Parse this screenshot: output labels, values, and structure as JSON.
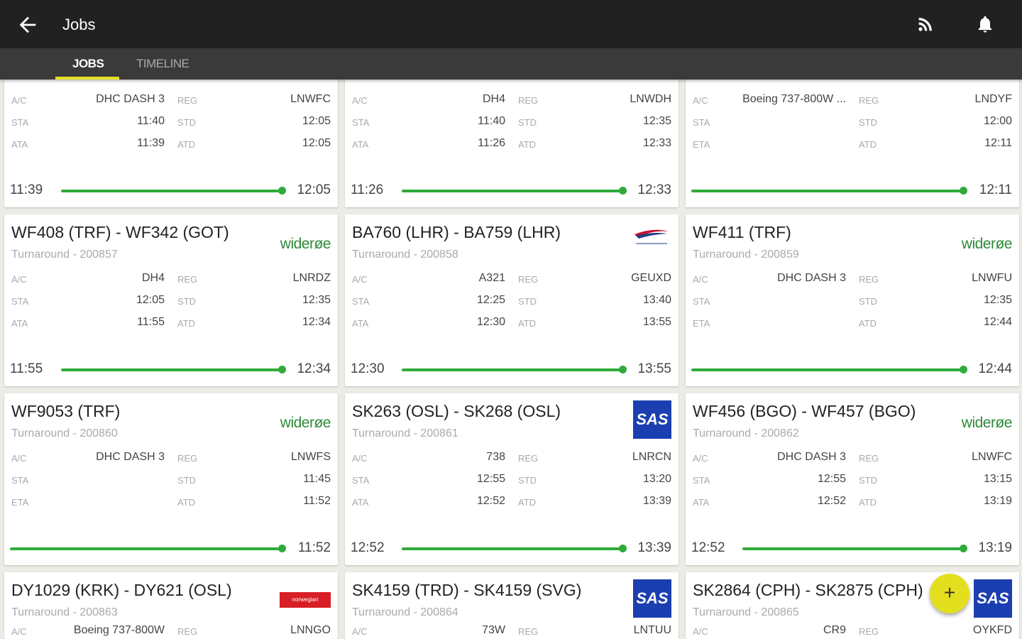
{
  "appbar": {
    "title": "Jobs",
    "back_icon": "arrow-left-icon",
    "feed_icon": "rss-icon",
    "notif_icon": "bell-icon"
  },
  "tabs": [
    {
      "label": "JOBS",
      "active": true
    },
    {
      "label": "TIMELINE",
      "active": false
    }
  ],
  "accent": "#e6e022",
  "progress_color": "#2eab3a",
  "fab": {
    "label": "+",
    "icon": "add-icon"
  },
  "cards": [
    {
      "title": "",
      "subtitle": "",
      "logo": "",
      "rows": [
        [
          "A/C",
          "DHC DASH 3",
          "REG",
          "LNWFC"
        ],
        [
          "STA",
          "11:40",
          "STD",
          "12:05"
        ],
        [
          "ATA",
          "11:39",
          "ATD",
          "12:05"
        ]
      ],
      "start": "11:39",
      "end": "12:05",
      "progress": 1
    },
    {
      "title": "",
      "subtitle": "",
      "logo": "",
      "rows": [
        [
          "A/C",
          "DH4",
          "REG",
          "LNWDH"
        ],
        [
          "STA",
          "11:40",
          "STD",
          "12:35"
        ],
        [
          "ATA",
          "11:26",
          "ATD",
          "12:33"
        ]
      ],
      "start": "11:26",
      "end": "12:33",
      "progress": 1
    },
    {
      "title": "",
      "subtitle": "",
      "logo": "",
      "rows": [
        [
          "A/C",
          "Boeing 737-800W ...",
          "REG",
          "LNDYF"
        ],
        [
          "STA",
          "",
          "STD",
          "12:00"
        ],
        [
          "ETA",
          "",
          "ATD",
          "12:11"
        ]
      ],
      "start": "",
      "end": "12:11",
      "progress": 1
    },
    {
      "title": "WF408 (TRF) - WF342 (GOT)",
      "subtitle": "Turnaround - 200857",
      "logo": "wideroe",
      "rows": [
        [
          "A/C",
          "DH4",
          "REG",
          "LNRDZ"
        ],
        [
          "STA",
          "12:05",
          "STD",
          "12:35"
        ],
        [
          "ATA",
          "11:55",
          "ATD",
          "12:34"
        ]
      ],
      "start": "11:55",
      "end": "12:34",
      "progress": 1
    },
    {
      "title": "BA760 (LHR) - BA759 (LHR)",
      "subtitle": "Turnaround - 200858",
      "logo": "ba",
      "rows": [
        [
          "A/C",
          "A321",
          "REG",
          "GEUXD"
        ],
        [
          "STA",
          "12:25",
          "STD",
          "13:40"
        ],
        [
          "ATA",
          "12:30",
          "ATD",
          "13:55"
        ]
      ],
      "start": "12:30",
      "end": "13:55",
      "progress": 1
    },
    {
      "title": "WF411 (TRF)",
      "subtitle": "Turnaround - 200859",
      "logo": "wideroe",
      "rows": [
        [
          "A/C",
          "DHC DASH 3",
          "REG",
          "LNWFU"
        ],
        [
          "STA",
          "",
          "STD",
          "12:35"
        ],
        [
          "ETA",
          "",
          "ATD",
          "12:44"
        ]
      ],
      "start": "",
      "end": "12:44",
      "progress": 1
    },
    {
      "title": "WF9053 (TRF)",
      "subtitle": "Turnaround - 200860",
      "logo": "wideroe",
      "rows": [
        [
          "A/C",
          "DHC DASH 3",
          "REG",
          "LNWFS"
        ],
        [
          "STA",
          "",
          "STD",
          "11:45"
        ],
        [
          "ETA",
          "",
          "ATD",
          "11:52"
        ]
      ],
      "start": "",
      "end": "11:52",
      "progress": 1
    },
    {
      "title": "SK263 (OSL) - SK268 (OSL)",
      "subtitle": "Turnaround - 200861",
      "logo": "sas",
      "rows": [
        [
          "A/C",
          "738",
          "REG",
          "LNRCN"
        ],
        [
          "STA",
          "12:55",
          "STD",
          "13:20"
        ],
        [
          "ATA",
          "12:52",
          "ATD",
          "13:39"
        ]
      ],
      "start": "12:52",
      "end": "13:39",
      "progress": 1
    },
    {
      "title": "WF456 (BGO) - WF457 (BGO)",
      "subtitle": "Turnaround - 200862",
      "logo": "wideroe",
      "rows": [
        [
          "A/C",
          "DHC DASH 3",
          "REG",
          "LNWFC"
        ],
        [
          "STA",
          "12:55",
          "STD",
          "13:15"
        ],
        [
          "ATA",
          "12:52",
          "ATD",
          "13:19"
        ]
      ],
      "start": "12:52",
      "end": "13:19",
      "progress": 1
    },
    {
      "title": "DY1029 (KRK) - DY621 (OSL)",
      "subtitle": "Turnaround - 200863",
      "logo": "norwegian",
      "rows": [
        [
          "A/C",
          "Boeing 737-800W",
          "REG",
          "LNNGO"
        ]
      ],
      "start": "",
      "end": "",
      "progress": null
    },
    {
      "title": "SK4159 (TRD) - SK4159 (SVG)",
      "subtitle": "Turnaround - 200864",
      "logo": "sas",
      "rows": [
        [
          "A/C",
          "73W",
          "REG",
          "LNTUU"
        ]
      ],
      "start": "",
      "end": "",
      "progress": null
    },
    {
      "title": "SK2864 (CPH) - SK2875 (CPH)",
      "subtitle": "Turnaround - 200865",
      "logo": "sas",
      "rows": [
        [
          "A/C",
          "CR9",
          "REG",
          "OYKFD"
        ]
      ],
      "start": "",
      "end": "",
      "progress": null
    }
  ],
  "logo_text": {
    "wideroe": "widerøe",
    "sas": "SAS",
    "norwegian": "norwegian"
  }
}
